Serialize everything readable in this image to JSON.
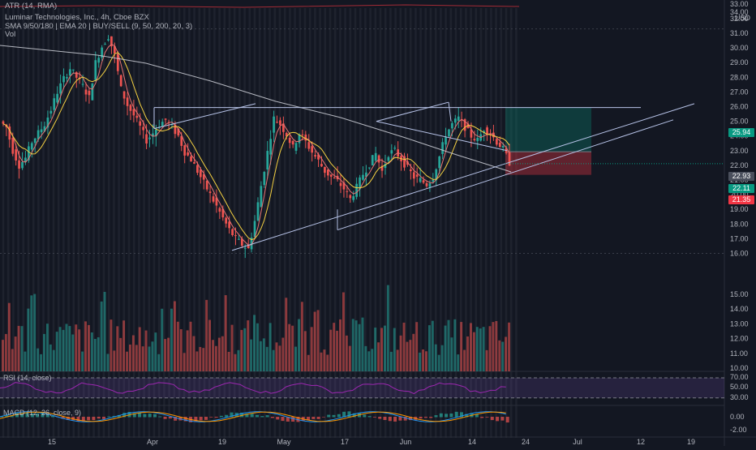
{
  "header": {
    "atr_label": "ATR (14, RMA)",
    "symbol_line": "Luminar Technologies, Inc., 4h, Cboe BZX",
    "indicators_line": "SMA 9/50/180 | EMA 20 | BUY/SELL (9, 50, 200, 20, 3)",
    "volume_label": "Vol"
  },
  "axis": {
    "currency": "USD",
    "top_value": "34.00",
    "price_ticks": [
      "33.00",
      "32.00",
      "31.00",
      "30.00",
      "29.00",
      "28.00",
      "27.00",
      "26.00",
      "25.00",
      "24.00",
      "23.00",
      "22.00",
      "21.00",
      "20.00",
      "19.00",
      "18.00",
      "17.00",
      "16.00",
      "15.00",
      "14.00",
      "13.00",
      "12.00",
      "11.00",
      "10.00"
    ],
    "rsi_ticks": [
      "70.00",
      "50.00",
      "30.00"
    ],
    "macd_ticks": [
      "0.00",
      "-2.00"
    ],
    "time_labels": [
      "15",
      "Apr",
      "19",
      "May",
      "17",
      "Jun",
      "14",
      "24",
      "Jul",
      "12",
      "19"
    ]
  },
  "price_tags": [
    {
      "value": "25.94",
      "color": "#089981"
    },
    {
      "value": "22.93",
      "color": "#4a4f5c"
    },
    {
      "value": "22.11",
      "color": "#089981"
    },
    {
      "value": "21.35",
      "color": "#f23645"
    }
  ],
  "panes": {
    "rsi_label": "RSI (14, close)",
    "macd_label": "MACD (12, 26, close, 9)"
  },
  "colors": {
    "up": "#26a69a",
    "down": "#ef5350",
    "sma_long": "#d1d4dc",
    "ema": "#f5d142",
    "sma_short": "#e57373",
    "trend": "#b7c3e8",
    "rsi": "#9c27b0",
    "macd": "#2196f3",
    "signal": "#ff9800"
  },
  "chart_data": {
    "type": "candlestick",
    "ylim": [
      10,
      34
    ],
    "trend_levels": {
      "resistance": 25.94,
      "stop": 21.35,
      "entry": 22.93,
      "target": 25.94,
      "last": 22.11
    },
    "price_path": [
      25.0,
      24.6,
      23.0,
      22.0,
      22.5,
      23.6,
      24.2,
      24.8,
      25.8,
      27.0,
      27.9,
      28.6,
      28.0,
      27.4,
      26.6,
      29.0,
      30.1,
      30.8,
      29.5,
      27.2,
      26.1,
      25.4,
      24.6,
      23.7,
      24.2,
      24.8,
      25.1,
      24.6,
      24.0,
      22.9,
      22.4,
      21.6,
      20.8,
      20.0,
      19.2,
      18.4,
      17.6,
      17.0,
      16.6,
      16.3,
      18.2,
      20.6,
      22.9,
      25.2,
      24.8,
      24.1,
      23.2,
      24.2,
      23.6,
      22.9,
      22.3,
      21.6,
      21.2,
      20.9,
      20.4,
      19.7,
      20.5,
      21.4,
      22.1,
      22.8,
      21.6,
      22.8,
      23.0,
      22.4,
      21.8,
      21.2,
      21.0,
      20.7,
      21.2,
      22.6,
      24.1,
      24.8,
      25.2,
      24.6,
      24.0,
      23.7,
      24.5,
      24.2,
      23.6,
      23.1,
      22.2
    ]
  }
}
